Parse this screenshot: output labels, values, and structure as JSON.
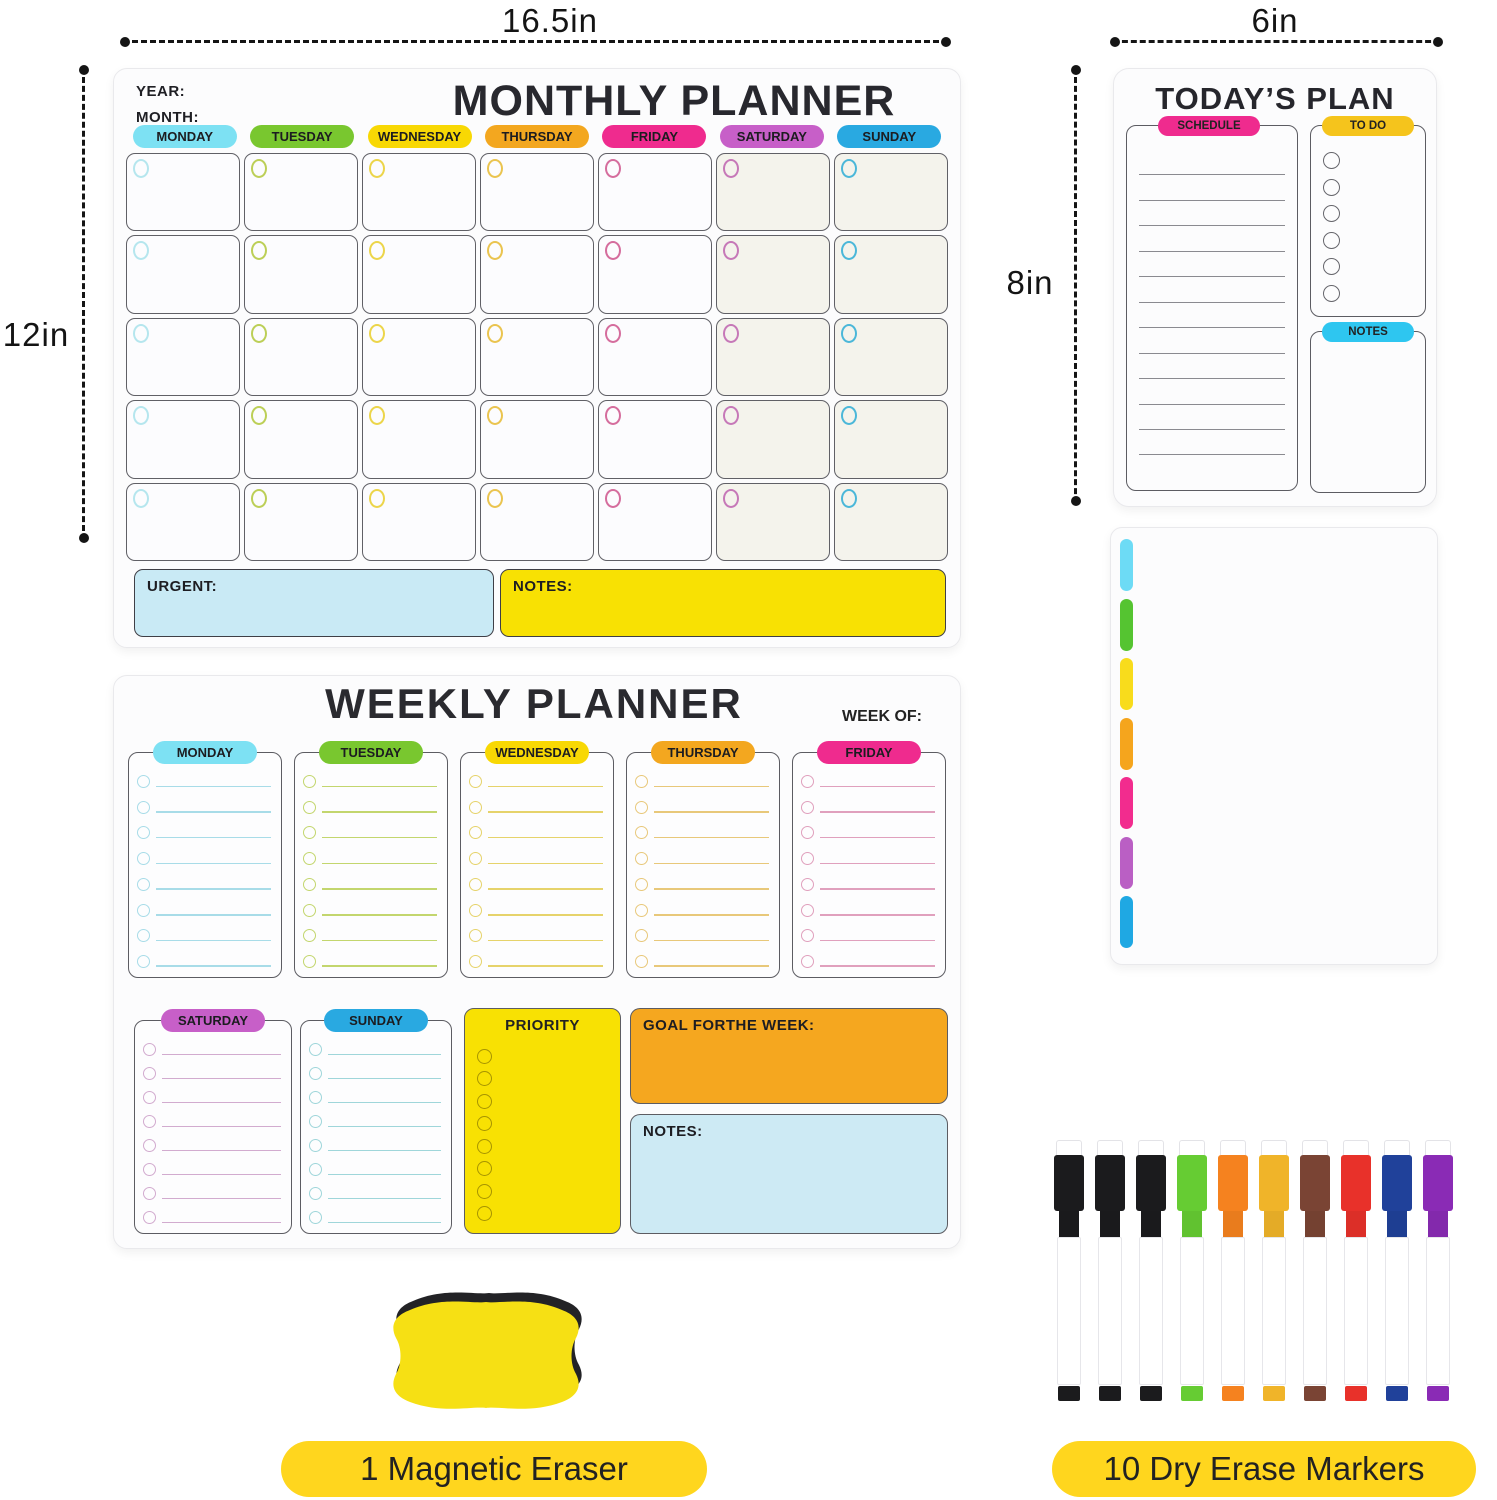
{
  "dimensions": {
    "monthly_width_label": "16.5in",
    "monthly_height_label": "12in",
    "today_width_label": "6in",
    "today_height_label": "8in"
  },
  "monthly_planner": {
    "title": "MONTHLY PLANNER",
    "year_label": "YEAR:",
    "month_label": "MONTH:",
    "days": [
      {
        "label": "MONDAY",
        "color": "#7de1f3",
        "circle": "#b5e6ee"
      },
      {
        "label": "TUESDAY",
        "color": "#79c72f",
        "circle": "#bccf57"
      },
      {
        "label": "WEDNESDAY",
        "color": "#f8d804",
        "circle": "#ecd54a"
      },
      {
        "label": "THURSDAY",
        "color": "#f3a71f",
        "circle": "#eac44f"
      },
      {
        "label": "FRIDAY",
        "color": "#ef2b8e",
        "circle": "#d56d9d"
      },
      {
        "label": "SATURDAY",
        "color": "#c75fc8",
        "circle": "#c678b8"
      },
      {
        "label": "SUNDAY",
        "color": "#29a9e1",
        "circle": "#4bb7d9"
      }
    ],
    "grid_rows": 5,
    "urgent_label": "URGENT:",
    "urgent_color": "#c9eaf5",
    "notes_label": "NOTES:",
    "notes_color": "#f8e103"
  },
  "todays_plan": {
    "title": "TODAY’S PLAN",
    "schedule_label": "SCHEDULE",
    "schedule_color": "#ef2b8e",
    "schedule_lines": 12,
    "todo_label": "TO DO",
    "todo_color": "#f5c41c",
    "todo_circles": 6,
    "notes_label": "NOTES",
    "notes_color": "#2ec6f0"
  },
  "tab_board": {
    "tab_colors": [
      "#6ddbf5",
      "#55c431",
      "#f8dc1c",
      "#f5a51d",
      "#f22c8e",
      "#ba5fc4",
      "#1fa8e3"
    ]
  },
  "weekly_planner": {
    "title": "WEEKLY PLANNER",
    "week_of_label": "WEEK OF:",
    "weekday_rows": 8,
    "days": [
      {
        "label": "MONDAY",
        "color": "#7de1f3",
        "line": "#a8dce8"
      },
      {
        "label": "TUESDAY",
        "color": "#79c72f",
        "line": "#c3d66e"
      },
      {
        "label": "WEDNESDAY",
        "color": "#f8d804",
        "line": "#e6d36b"
      },
      {
        "label": "THURSDAY",
        "color": "#f3a71f",
        "line": "#e8c87a"
      },
      {
        "label": "FRIDAY",
        "color": "#ef2b8e",
        "line": "#e0a0bd"
      }
    ],
    "weekend_days": [
      {
        "label": "SATURDAY",
        "color": "#c75fc8",
        "line": "#d2abcf"
      },
      {
        "label": "SUNDAY",
        "color": "#29a9e1",
        "line": "#9fd6da"
      }
    ],
    "priority_label": "PRIORITY",
    "priority_color": "#f8e103",
    "priority_circles": 8,
    "goal_label": "GOAL FORTHE WEEK:",
    "goal_color": "#f5a71f",
    "notes_label": "NOTES:",
    "notes_color": "#cdeaf4"
  },
  "eraser": {
    "caption": "1 Magnetic Eraser",
    "body_color": "#f6e014"
  },
  "markers": {
    "caption": "10 Dry Erase Markers",
    "colors": [
      "#1b1b1d",
      "#1b1b1d",
      "#1b1b1d",
      "#66cc33",
      "#f5821f",
      "#f0b429",
      "#7a4434",
      "#e8312a",
      "#20419a",
      "#8a2bb5"
    ]
  },
  "caption_pill_color": "#ffd61e"
}
